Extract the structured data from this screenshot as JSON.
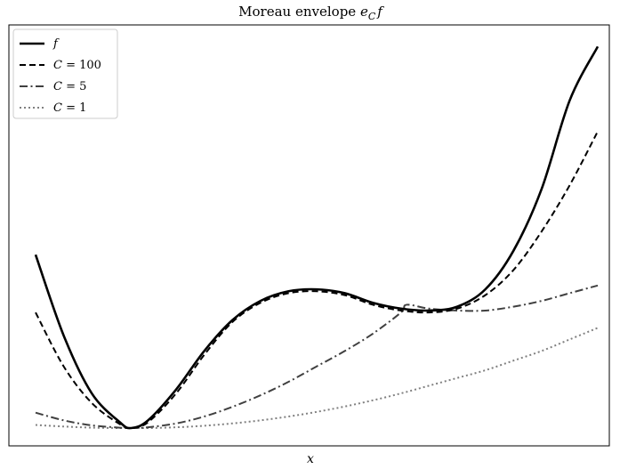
{
  "chart_data": {
    "type": "line",
    "title": "Moreau envelope e_C f",
    "title_main": "Moreau envelope ",
    "title_e": "e",
    "title_sub": "C",
    "title_f": "f",
    "xlabel": "x",
    "ylabel": "",
    "ticks_shown": false,
    "grid": false,
    "legend_position": "top-left",
    "xlim": [
      0,
      1
    ],
    "ylim": [
      0,
      1
    ],
    "series": [
      {
        "name": "f",
        "style": "solid",
        "color": "#000000",
        "x": [
          0.0,
          0.05,
          0.1,
          0.15,
          0.17,
          0.2,
          0.25,
          0.3,
          0.35,
          0.4,
          0.45,
          0.5,
          0.55,
          0.6,
          0.65,
          0.7,
          0.75,
          0.8,
          0.85,
          0.9,
          0.95,
          1.0
        ],
        "y": [
          0.45,
          0.24,
          0.09,
          0.015,
          0.0,
          0.02,
          0.1,
          0.2,
          0.28,
          0.33,
          0.355,
          0.36,
          0.35,
          0.325,
          0.31,
          0.305,
          0.315,
          0.36,
          0.46,
          0.62,
          0.85,
          0.99
        ]
      },
      {
        "name": "C = 100",
        "style": "dashed",
        "color": "#000000",
        "x": [
          0.0,
          0.05,
          0.1,
          0.15,
          0.17,
          0.2,
          0.25,
          0.3,
          0.35,
          0.4,
          0.45,
          0.5,
          0.55,
          0.6,
          0.65,
          0.7,
          0.75,
          0.8,
          0.85,
          0.9,
          0.95,
          1.0
        ],
        "y": [
          0.3,
          0.16,
          0.065,
          0.01,
          0.0,
          0.015,
          0.09,
          0.19,
          0.275,
          0.325,
          0.35,
          0.355,
          0.345,
          0.32,
          0.305,
          0.3,
          0.31,
          0.345,
          0.41,
          0.51,
          0.63,
          0.77
        ]
      },
      {
        "name": "C = 5",
        "style": "dashdot",
        "color": "#404040",
        "x": [
          0.0,
          0.05,
          0.1,
          0.15,
          0.17,
          0.2,
          0.25,
          0.3,
          0.35,
          0.4,
          0.45,
          0.5,
          0.55,
          0.6,
          0.65,
          0.66,
          0.7,
          0.75,
          0.8,
          0.85,
          0.9,
          0.95,
          1.0
        ],
        "y": [
          0.04,
          0.02,
          0.007,
          0.001,
          0.0,
          0.002,
          0.012,
          0.03,
          0.055,
          0.085,
          0.12,
          0.16,
          0.2,
          0.245,
          0.3,
          0.32,
          0.31,
          0.305,
          0.305,
          0.315,
          0.33,
          0.35,
          0.37
        ]
      },
      {
        "name": "C = 1",
        "style": "dotted",
        "color": "#808080",
        "x": [
          0.0,
          0.05,
          0.1,
          0.15,
          0.17,
          0.2,
          0.25,
          0.3,
          0.35,
          0.4,
          0.45,
          0.5,
          0.55,
          0.6,
          0.65,
          0.7,
          0.75,
          0.8,
          0.85,
          0.9,
          0.95,
          1.0
        ],
        "y": [
          0.008,
          0.004,
          0.001,
          0.0,
          0.0,
          0.0,
          0.002,
          0.006,
          0.012,
          0.02,
          0.03,
          0.042,
          0.056,
          0.072,
          0.09,
          0.11,
          0.13,
          0.15,
          0.175,
          0.2,
          0.23,
          0.26
        ]
      }
    ],
    "legend": [
      {
        "series": 0,
        "name": "f",
        "lhs": "f",
        "rhs": ""
      },
      {
        "series": 1,
        "name": "C = 100",
        "lhs": "C",
        "rhs": " = 100"
      },
      {
        "series": 2,
        "name": "C = 5",
        "lhs": "C",
        "rhs": " = 5"
      },
      {
        "series": 3,
        "name": "C = 1",
        "lhs": "C",
        "rhs": " = 1"
      }
    ]
  }
}
